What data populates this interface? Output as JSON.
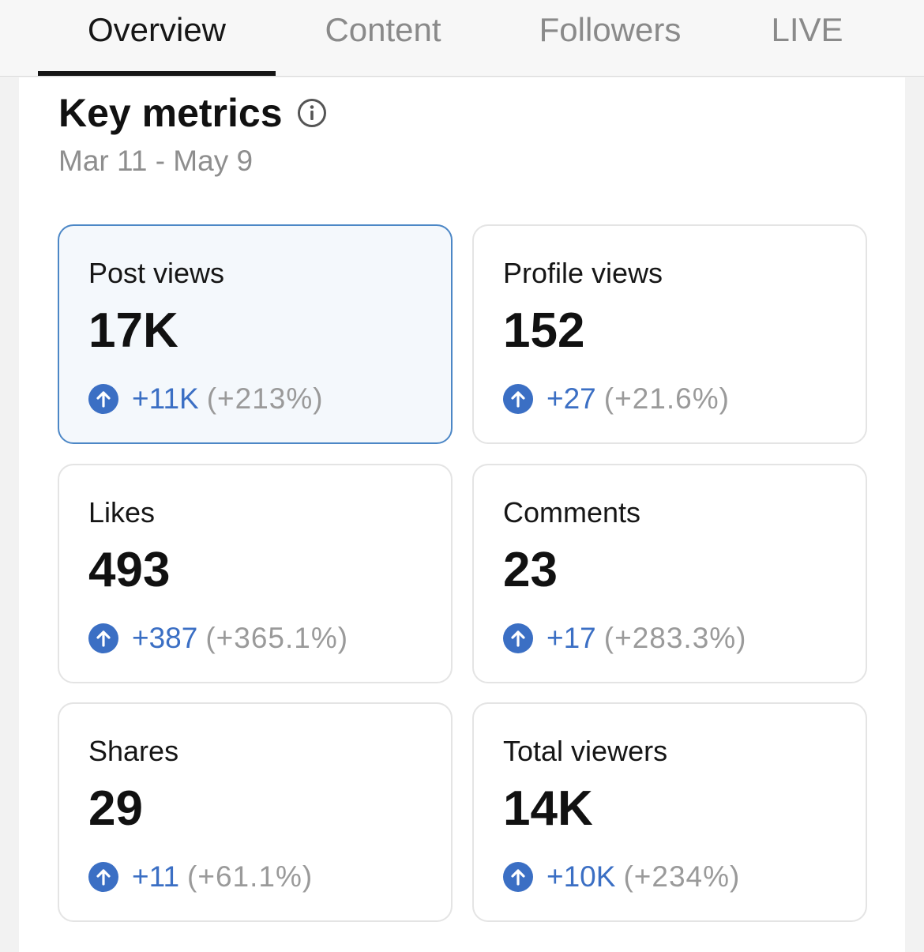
{
  "tabs": [
    "Overview",
    "Content",
    "Followers",
    "LIVE"
  ],
  "active_tab": "Overview",
  "section": {
    "title": "Key metrics",
    "date_range": "Mar 11 - May 9"
  },
  "metrics": [
    {
      "label": "Post views",
      "value": "17K",
      "delta": "+11K",
      "pct": "(+213%)",
      "selected": true
    },
    {
      "label": "Profile views",
      "value": "152",
      "delta": "+27",
      "pct": "(+21.6%)"
    },
    {
      "label": "Likes",
      "value": "493",
      "delta": "+387",
      "pct": "(+365.1%)"
    },
    {
      "label": "Comments",
      "value": "23",
      "delta": "+17",
      "pct": "(+283.3%)"
    },
    {
      "label": "Shares",
      "value": "29",
      "delta": "+11",
      "pct": "(+61.1%)"
    },
    {
      "label": "Total viewers",
      "value": "14K",
      "delta": "+10K",
      "pct": "(+234%)"
    }
  ],
  "icons": {
    "info": "info-icon",
    "trend": "arrow-up-circle-icon"
  },
  "colors": {
    "accent": "#3b6fc4",
    "selected_border": "#4c87c6",
    "selected_bg": "#f4f8fc",
    "muted": "#9a9a9a"
  }
}
